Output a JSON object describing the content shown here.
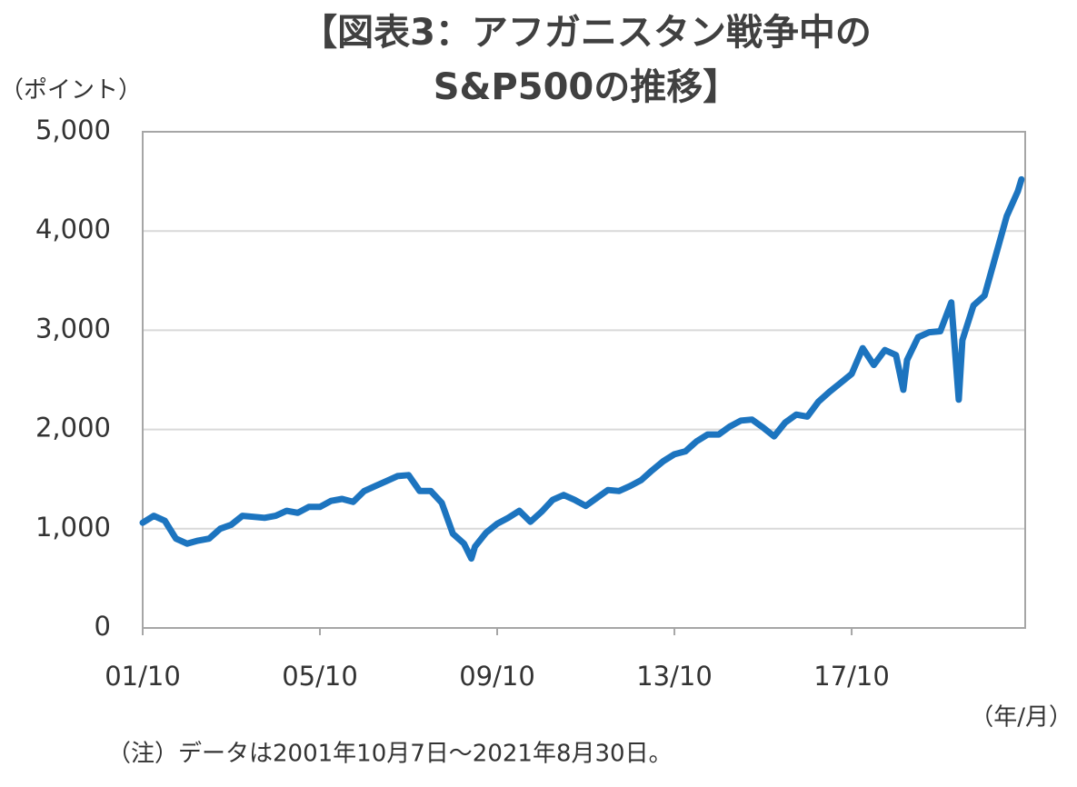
{
  "chart_data": {
    "type": "line",
    "title": [
      "【図表3：アフガニスタン戦争中の",
      "S&P500の推移】"
    ],
    "y_label": "（ポイント）",
    "x_label": "（年/月）",
    "note": "（注）データは2001年10月7日～2021年8月30日。",
    "x": [
      "01/10",
      "02/01",
      "02/04",
      "02/07",
      "02/10",
      "03/01",
      "03/04",
      "03/07",
      "03/10",
      "04/01",
      "04/04",
      "04/07",
      "04/10",
      "05/01",
      "05/04",
      "05/07",
      "05/10",
      "06/01",
      "06/04",
      "06/07",
      "06/10",
      "07/01",
      "07/04",
      "07/07",
      "07/10",
      "08/01",
      "08/04",
      "08/07",
      "08/10",
      "09/01",
      "09/03",
      "09/04",
      "09/07",
      "09/10",
      "10/01",
      "10/04",
      "10/07",
      "10/10",
      "11/01",
      "11/04",
      "11/07",
      "11/10",
      "12/01",
      "12/04",
      "12/07",
      "12/10",
      "13/01",
      "13/04",
      "13/07",
      "13/10",
      "14/01",
      "14/04",
      "14/07",
      "14/10",
      "15/01",
      "15/04",
      "15/07",
      "15/10",
      "16/01",
      "16/04",
      "16/07",
      "16/10",
      "17/01",
      "17/04",
      "17/07",
      "17/10",
      "18/01",
      "18/04",
      "18/07",
      "18/10",
      "18/12",
      "19/01",
      "19/04",
      "19/07",
      "19/10",
      "20/01",
      "20/03",
      "20/04",
      "20/07",
      "20/10",
      "21/01",
      "21/04",
      "21/07",
      "21/08"
    ],
    "series": [
      {
        "name": "S&P500",
        "color": "#1c74bf",
        "values": [
          1060,
          1130,
          1080,
          900,
          850,
          880,
          900,
          1000,
          1040,
          1130,
          1120,
          1110,
          1130,
          1180,
          1160,
          1220,
          1220,
          1280,
          1300,
          1270,
          1380,
          1430,
          1480,
          1530,
          1540,
          1380,
          1380,
          1260,
          950,
          850,
          700,
          820,
          960,
          1050,
          1110,
          1180,
          1070,
          1170,
          1290,
          1340,
          1290,
          1230,
          1310,
          1390,
          1380,
          1430,
          1490,
          1590,
          1680,
          1750,
          1780,
          1880,
          1950,
          1950,
          2030,
          2090,
          2100,
          2020,
          1930,
          2070,
          2150,
          2130,
          2280,
          2380,
          2470,
          2560,
          2820,
          2650,
          2800,
          2750,
          2400,
          2700,
          2930,
          2980,
          2990,
          3280,
          2300,
          2900,
          3250,
          3350,
          3750,
          4150,
          4400,
          4520
        ]
      }
    ],
    "xlim": [
      "01/10",
      "21/09"
    ],
    "xticks": [
      "01/10",
      "05/10",
      "09/10",
      "13/10",
      "17/10"
    ],
    "ylim": [
      0,
      5000
    ],
    "yticks": [
      0,
      {
        "value": 1000,
        "label": "1,000"
      },
      {
        "value": 2000,
        "label": "2,000"
      },
      {
        "value": 3000,
        "label": "3,000"
      },
      {
        "value": 4000,
        "label": "4,000"
      },
      {
        "value": 5000,
        "label": "5,000"
      }
    ],
    "grid": true
  }
}
